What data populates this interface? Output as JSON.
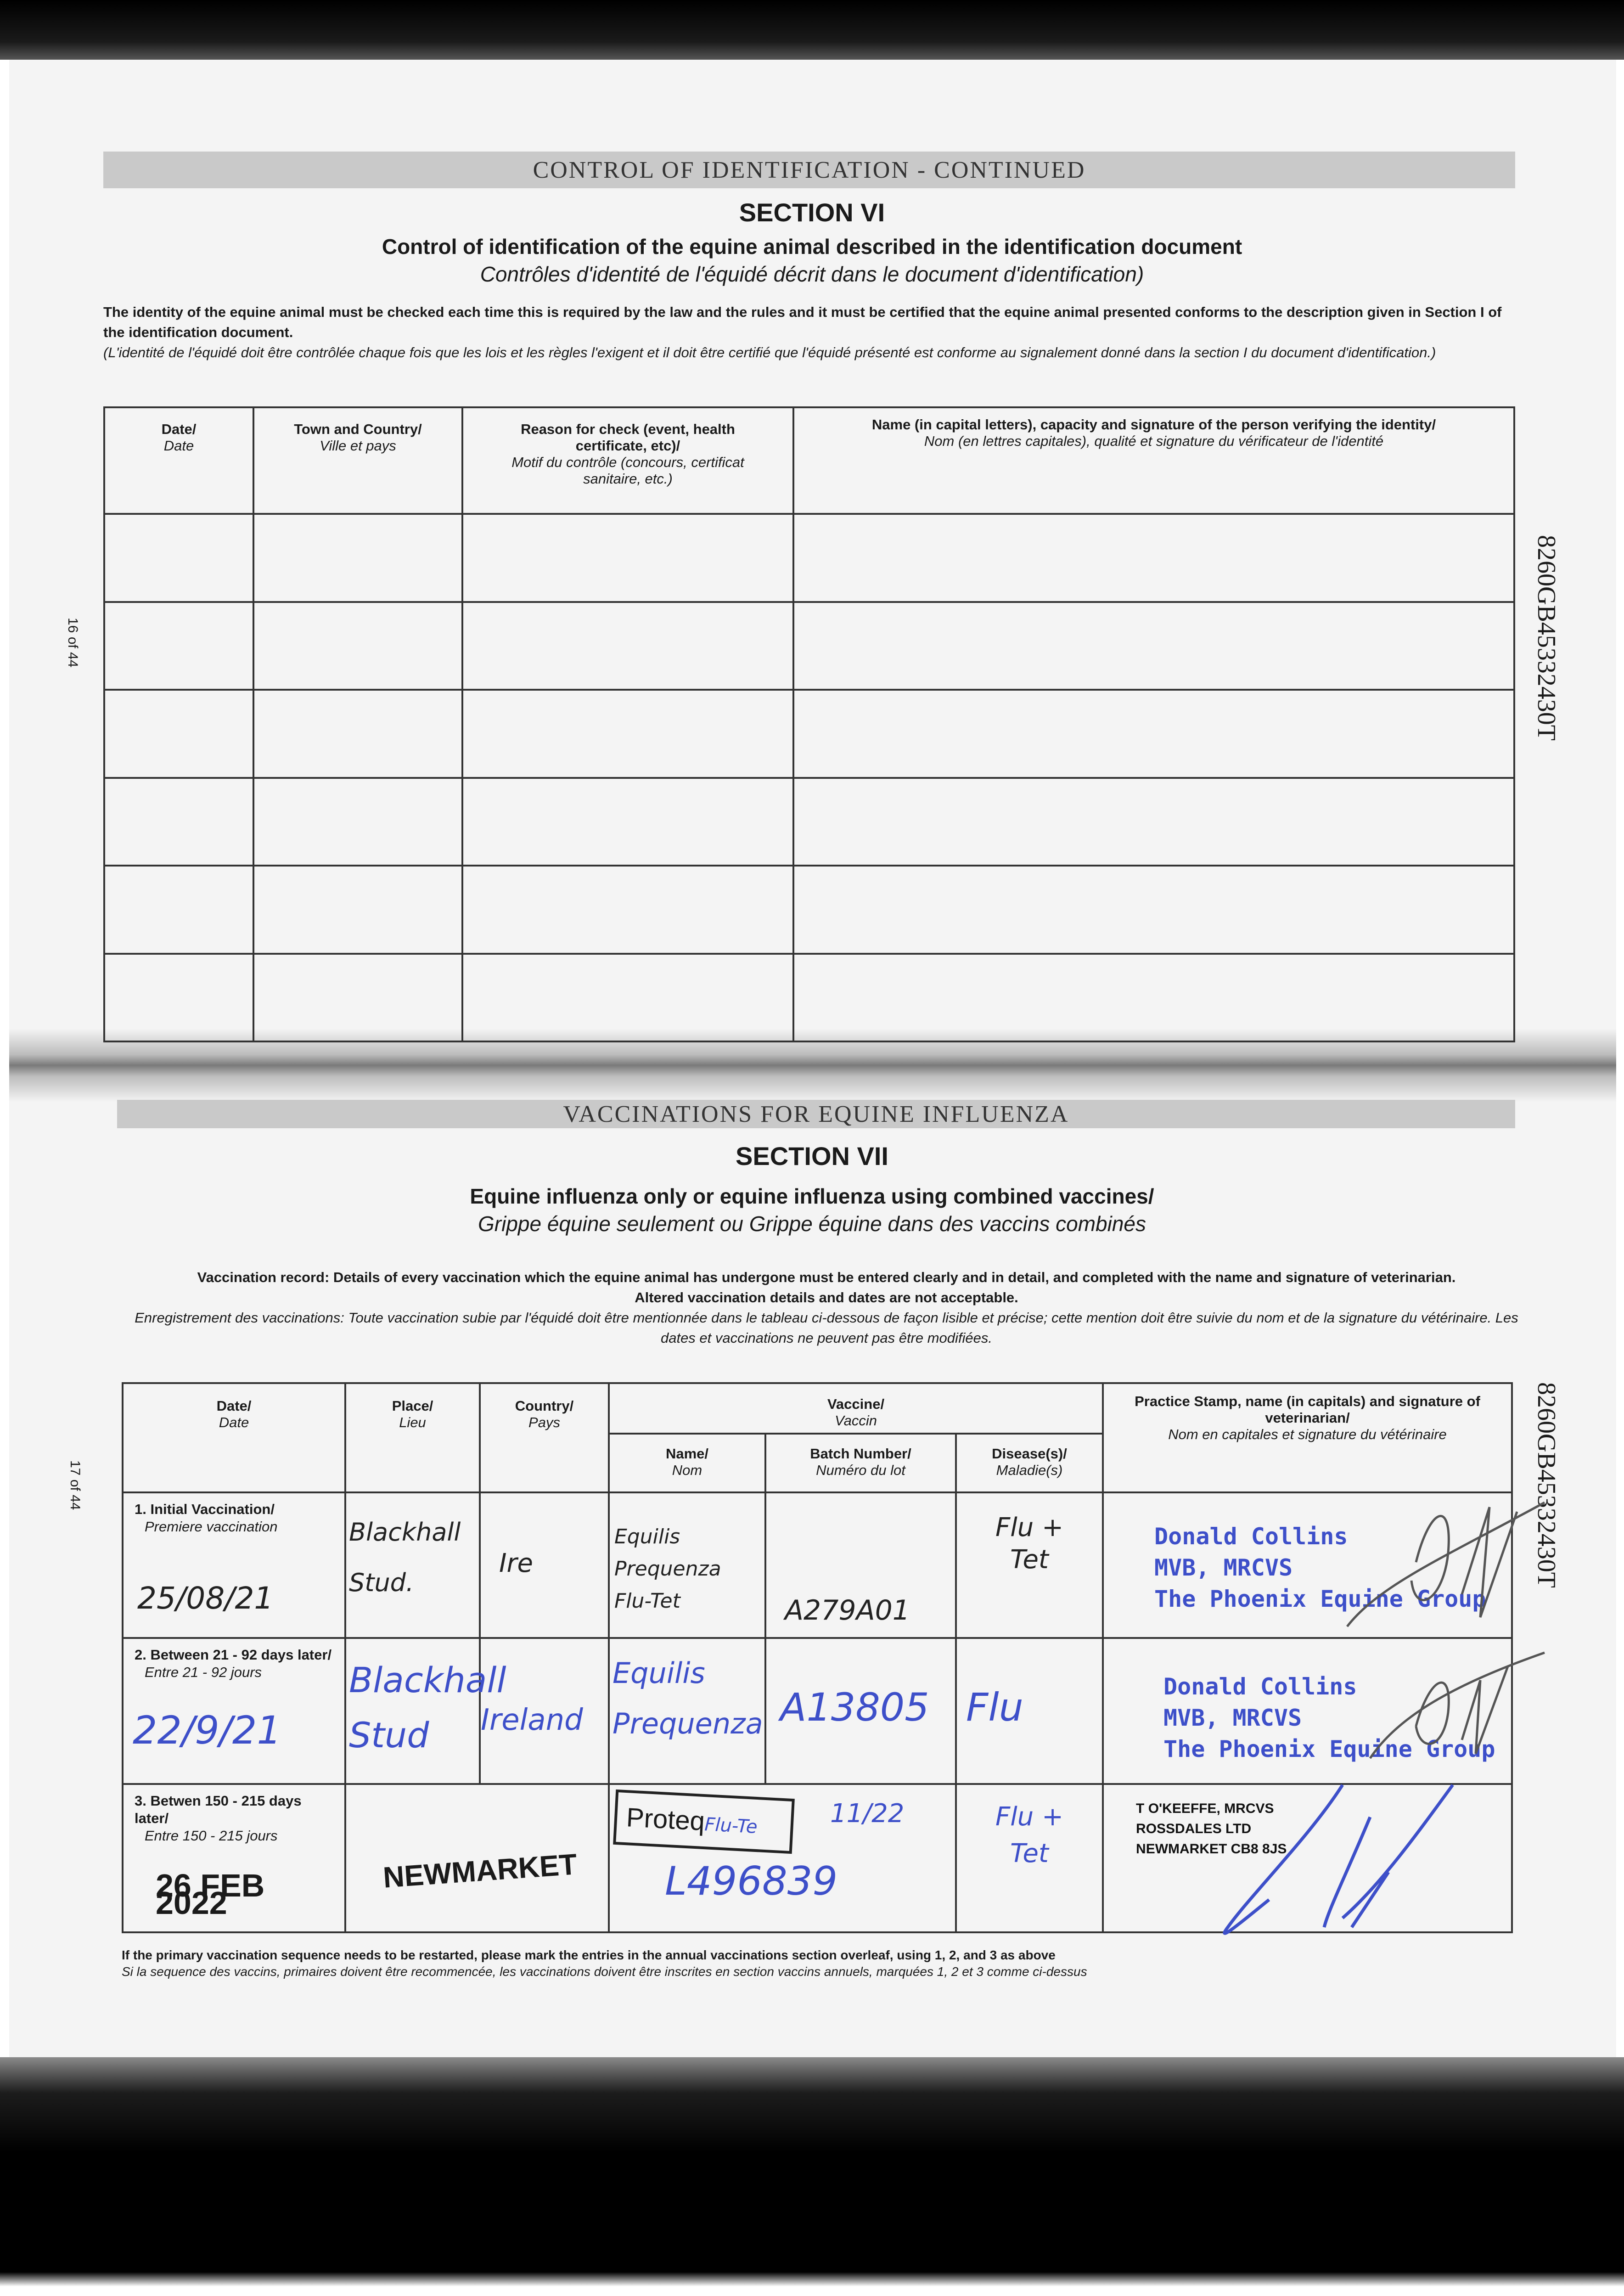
{
  "document_id": "8260GB45332430T",
  "page16": {
    "page_number": "16 of 44",
    "band_title": "CONTROL OF IDENTIFICATION - CONTINUED",
    "section": "SECTION VI",
    "subtitle_en": "Control of identification of the equine animal described in the identification document",
    "subtitle_fr": "Contrôles d'identité de l'équidé décrit dans le document d'identification)",
    "intro_en": "The identity of the equine animal must be checked each time this is required by the law and the rules and it must be certified that the equine animal presented conforms to the description given in Section I of the identification document.",
    "intro_fr": "(L'identité de l'équidé doit être contrôlée chaque fois que les lois et les règles l'exigent et il doit être certifié que l'équidé présenté est conforme au signalement donné dans la section I du document d'identification.)",
    "columns": [
      {
        "en": "Date/",
        "fr": "Date"
      },
      {
        "en": "Town and Country/",
        "fr": "Ville et pays"
      },
      {
        "en": "Reason for check (event, health certificate, etc)/",
        "fr": "Motif du contrôle (concours, certificat sanitaire, etc.)"
      },
      {
        "en": "Name (in capital letters), capacity and signature of the person verifying the identity/",
        "fr": "Nom (en lettres capitales), qualité et signature du vérificateur de l'identité"
      }
    ],
    "rows": [
      [
        "",
        "",
        "",
        ""
      ],
      [
        "",
        "",
        "",
        ""
      ],
      [
        "",
        "",
        "",
        ""
      ],
      [
        "",
        "",
        "",
        ""
      ],
      [
        "",
        "",
        "",
        ""
      ],
      [
        "",
        "",
        "",
        ""
      ]
    ]
  },
  "page17": {
    "page_number": "17 of 44",
    "band_title": "VACCINATIONS FOR EQUINE INFLUENZA",
    "section": "SECTION VII",
    "subtitle_en": "Equine influenza only or equine influenza using combined vaccines/",
    "subtitle_fr": "Grippe équine seulement ou Grippe équine dans des vaccins combinés",
    "intro_en_1": "Vaccination record: Details of every vaccination which the equine animal has undergone must be entered clearly and in detail, and completed with the name and signature of veterinarian.",
    "intro_en_2": "Altered vaccination details and dates are not acceptable.",
    "intro_fr": "Enregistrement des vaccinations: Toute vaccination subie par l'équidé doit être mentionnée dans le tableau ci-dessous de façon lisible et précise; cette mention doit être suivie du nom et de la signature du vétérinaire. Les dates et vaccinations ne peuvent pas être modifiées.",
    "headers": {
      "date": {
        "en": "Date/",
        "fr": "Date"
      },
      "place": {
        "en": "Place/",
        "fr": "Lieu"
      },
      "country": {
        "en": "Country/",
        "fr": "Pays"
      },
      "vaccine": {
        "en": "Vaccine/",
        "fr": "Vaccin"
      },
      "name": {
        "en": "Name/",
        "fr": "Nom"
      },
      "batch": {
        "en": "Batch Number/",
        "fr": "Numéro du lot"
      },
      "disease": {
        "en": "Disease(s)/",
        "fr": "Maladie(s)"
      },
      "vet": {
        "en": "Practice Stamp, name (in capitals) and signature of veterinarian/",
        "fr": "Nom en capitales et signature du vétérinaire"
      }
    },
    "rows": [
      {
        "label_en": "1. Initial Vaccination/",
        "label_fr": "Premiere vaccination",
        "date": "25/08/21",
        "place": "Blackhall Stud.",
        "country": "Ire",
        "vaccine_name": "Equilis Prequenza Flu-Tet",
        "batch": "A279A01",
        "disease": "Flu + Tet",
        "stamp": [
          "Donald Collins",
          "MVB, MRCVS",
          "The Phoenix Equine Group"
        ],
        "ink": "black"
      },
      {
        "label_en": "2. Between 21 - 92 days later/",
        "label_fr": "Entre 21 - 92 jours",
        "date": "22/9/21",
        "place": "Blackhall Stud",
        "country": "Ireland",
        "vaccine_name": "Equilis Prequenza",
        "batch": "A13805",
        "disease": "Flu",
        "stamp": [
          "Donald Collins",
          "MVB, MRCVS",
          "The Phoenix Equine Group"
        ],
        "ink": "blue"
      },
      {
        "label_en": "3. Betwen 150 - 215 days later/",
        "label_fr": "Entre 150 - 215 jours",
        "date": "26 FEB 2022",
        "place": "NEWMARKET",
        "country": "",
        "vaccine_name_stamp": "Proteq",
        "vaccine_name_hand": "Flu-Te",
        "batch": "L496839",
        "batch_expiry": "11/22",
        "disease": "Flu + Tet",
        "stamp": [
          "T O'KEEFFE, MRCVS",
          "ROSSDALES LTD",
          "NEWMARKET CB8 8JS"
        ],
        "ink": "blue"
      }
    ],
    "footnote_en": "If the primary vaccination sequence needs to be restarted, please mark the entries in the annual vaccinations section overleaf, using 1, 2, and 3 as above",
    "footnote_fr": "Si la sequence des vaccins, primaires doivent être recommencée, les vaccinations doivent être inscrites en section vaccins annuels, marquées 1, 2 et 3 comme ci-dessus"
  },
  "colors": {
    "blue_ink": "#3d4fc9",
    "band_gray": "#c9c9c9",
    "text": "#1a1a1a"
  }
}
